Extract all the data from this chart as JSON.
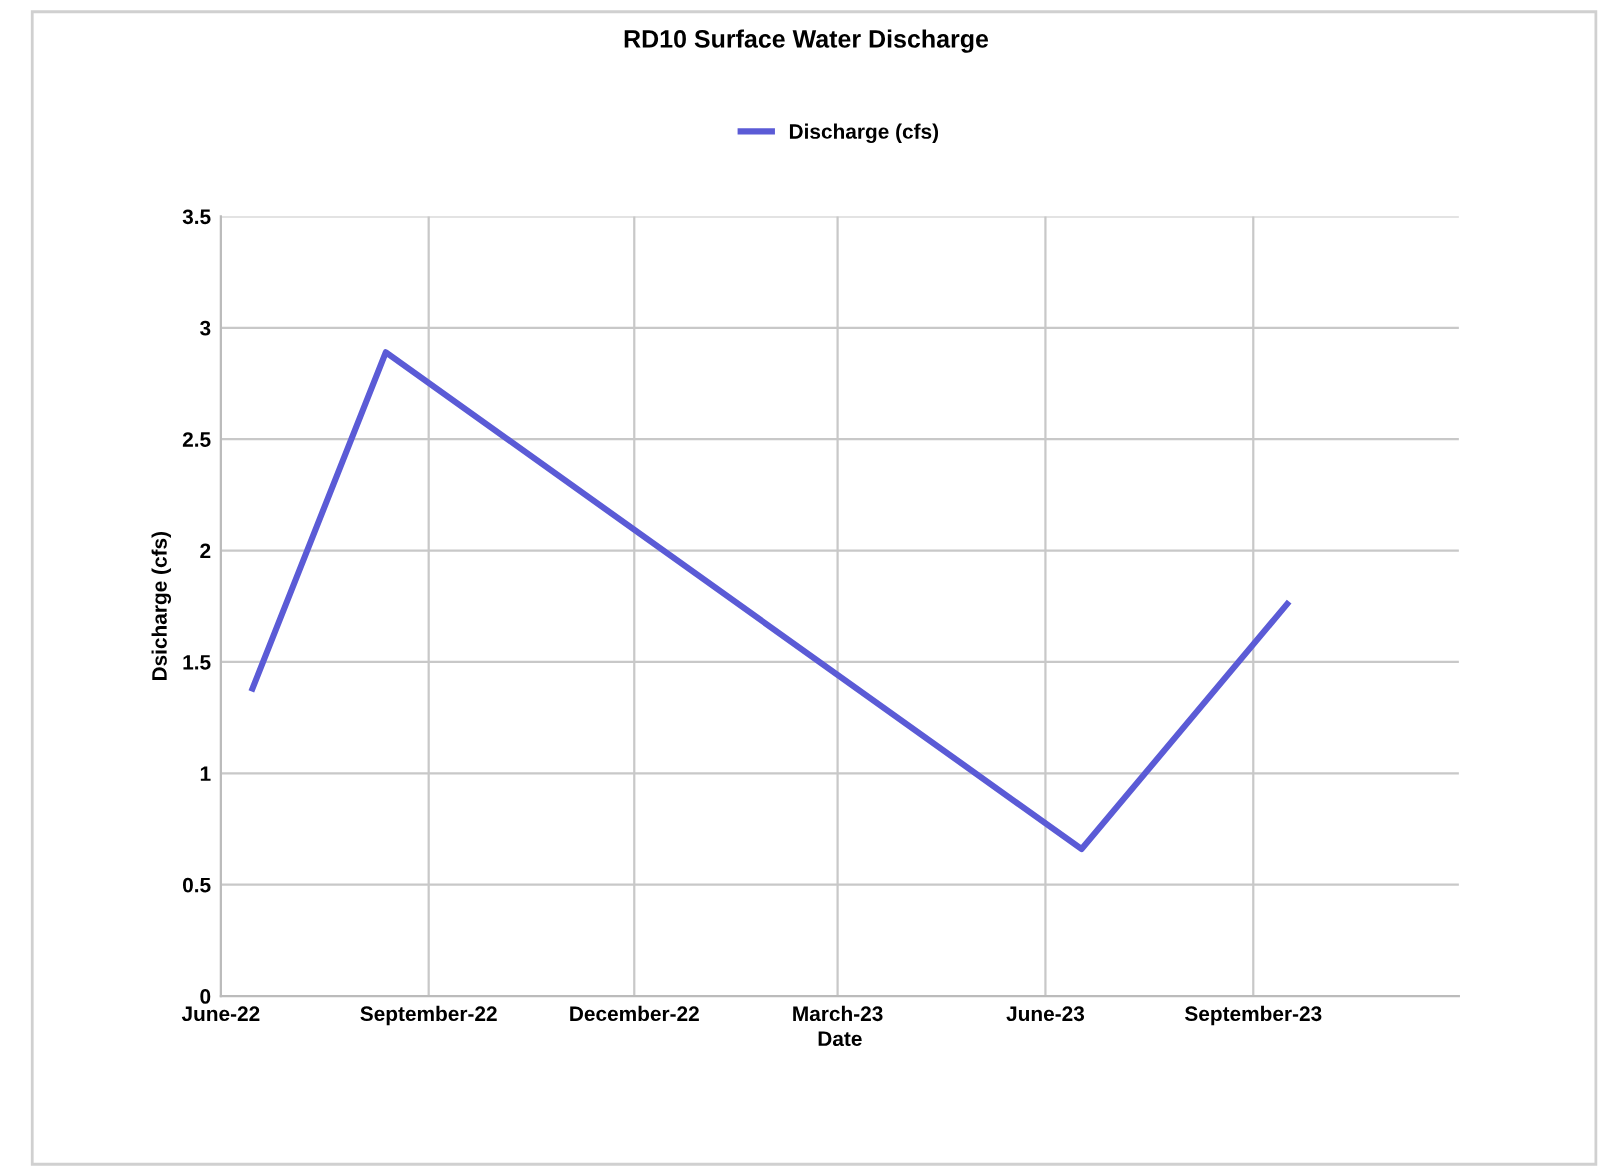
{
  "chart_data": {
    "type": "line",
    "title": "RD10 Surface Water Discharge",
    "xlabel": "Date",
    "ylabel": "Dsicharge (cfs)",
    "x": [
      "2022-06-15",
      "2022-08-13",
      "2023-06-17",
      "2023-09-16"
    ],
    "series": [
      {
        "name": "Discharge (cfs)",
        "color": "#5b5bd6",
        "values": [
          1.38,
          2.89,
          0.66,
          1.76
        ]
      }
    ],
    "xlim": [
      "2022-06-01",
      "2023-12-01"
    ],
    "xticks": [
      {
        "value": "2022-06-01",
        "label": "June-22"
      },
      {
        "value": "2022-09-01",
        "label": "September-22"
      },
      {
        "value": "2022-12-01",
        "label": "December-22"
      },
      {
        "value": "2023-03-01",
        "label": "March-23"
      },
      {
        "value": "2023-06-01",
        "label": "June-23"
      },
      {
        "value": "2023-09-01",
        "label": "September-23"
      }
    ],
    "ylim": [
      0,
      3.5
    ],
    "yticks": [
      0,
      0.5,
      1,
      1.5,
      2,
      2.5,
      3,
      3.5
    ],
    "grid": true,
    "legend": "top",
    "marker": "none",
    "line_style": "solid"
  }
}
